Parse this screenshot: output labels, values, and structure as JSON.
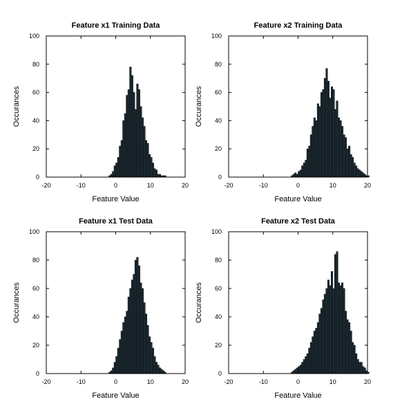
{
  "chart_data": [
    {
      "type": "bar",
      "title": "Feature x1 Training Data",
      "xlabel": "Feature Value",
      "ylabel": "Occurances",
      "xlim": [
        -20,
        20
      ],
      "ylim": [
        0,
        100
      ],
      "xticks": [
        "-20",
        "-10",
        "0",
        "10",
        "20"
      ],
      "yticks": [
        "0",
        "20",
        "40",
        "60",
        "80",
        "100"
      ],
      "x": [
        -2.0,
        -1.5,
        -1.0,
        -0.5,
        0.0,
        0.5,
        1.0,
        1.5,
        2.0,
        2.5,
        3.0,
        3.5,
        4.0,
        4.5,
        5.0,
        5.5,
        6.0,
        6.5,
        7.0,
        7.5,
        8.0,
        8.5,
        9.0,
        9.5,
        10.0,
        10.5,
        11.0,
        11.5,
        12.0,
        12.5,
        13.0,
        13.5,
        14.0
      ],
      "values": [
        1,
        2,
        4,
        8,
        10,
        14,
        22,
        26,
        40,
        45,
        58,
        62,
        78,
        72,
        60,
        48,
        66,
        62,
        50,
        42,
        36,
        26,
        24,
        16,
        14,
        10,
        6,
        5,
        2,
        2,
        1,
        1,
        1
      ]
    },
    {
      "type": "bar",
      "title": "Feature x2 Training Data",
      "xlabel": "Feature Value",
      "ylabel": "Occurances",
      "xlim": [
        -20,
        20
      ],
      "ylim": [
        0,
        100
      ],
      "xticks": [
        "-20",
        "-10",
        "0",
        "10",
        "20"
      ],
      "yticks": [
        "0",
        "20",
        "40",
        "60",
        "80",
        "100"
      ],
      "x": [
        -2.0,
        -1.5,
        -1.0,
        -0.5,
        0.0,
        0.5,
        1.0,
        1.5,
        2.0,
        2.5,
        3.0,
        3.5,
        4.0,
        4.5,
        5.0,
        5.5,
        6.0,
        6.5,
        7.0,
        7.5,
        8.0,
        8.5,
        9.0,
        9.5,
        10.0,
        10.5,
        11.0,
        11.5,
        12.0,
        12.5,
        13.0,
        13.5,
        14.0,
        14.5,
        15.0,
        15.5,
        16.0,
        16.5,
        17.0,
        17.5,
        18.0,
        18.5,
        19.0,
        19.5,
        20.0
      ],
      "values": [
        1,
        2,
        3,
        2,
        4,
        5,
        8,
        10,
        12,
        20,
        22,
        30,
        36,
        42,
        40,
        52,
        50,
        60,
        62,
        70,
        77,
        68,
        56,
        64,
        62,
        48,
        54,
        42,
        40,
        36,
        30,
        28,
        20,
        22,
        16,
        14,
        10,
        8,
        6,
        5,
        4,
        3,
        2,
        1,
        1
      ]
    },
    {
      "type": "bar",
      "title": "Feature x1 Test Data",
      "xlabel": "Feature Value",
      "ylabel": "Occurances",
      "xlim": [
        -20,
        20
      ],
      "ylim": [
        0,
        100
      ],
      "xticks": [
        "-20",
        "-10",
        "0",
        "10",
        "20"
      ],
      "yticks": [
        "0",
        "20",
        "40",
        "60",
        "80",
        "100"
      ],
      "x": [
        -2.0,
        -1.5,
        -1.0,
        -0.5,
        0.0,
        0.5,
        1.0,
        1.5,
        2.0,
        2.5,
        3.0,
        3.5,
        4.0,
        4.5,
        5.0,
        5.5,
        6.0,
        6.5,
        7.0,
        7.5,
        8.0,
        8.5,
        9.0,
        9.5,
        10.0,
        10.5,
        11.0,
        11.5,
        12.0,
        12.5,
        13.0,
        13.5,
        14.0
      ],
      "values": [
        1,
        2,
        4,
        8,
        12,
        18,
        24,
        30,
        36,
        40,
        44,
        54,
        60,
        66,
        70,
        80,
        82,
        76,
        64,
        60,
        50,
        42,
        34,
        26,
        22,
        18,
        12,
        8,
        6,
        4,
        3,
        2,
        1
      ]
    },
    {
      "type": "bar",
      "title": "Feature x2 Test Data",
      "xlabel": "Feature Value",
      "ylabel": "Occurances",
      "xlim": [
        -20,
        20
      ],
      "ylim": [
        0,
        100
      ],
      "xticks": [
        "-20",
        "-10",
        "0",
        "10",
        "20"
      ],
      "yticks": [
        "0",
        "20",
        "40",
        "60",
        "80",
        "100"
      ],
      "x": [
        -2.0,
        -1.5,
        -1.0,
        -0.5,
        0.0,
        0.5,
        1.0,
        1.5,
        2.0,
        2.5,
        3.0,
        3.5,
        4.0,
        4.5,
        5.0,
        5.5,
        6.0,
        6.5,
        7.0,
        7.5,
        8.0,
        8.5,
        9.0,
        9.5,
        10.0,
        10.5,
        11.0,
        11.5,
        12.0,
        12.5,
        13.0,
        13.5,
        14.0,
        14.5,
        15.0,
        15.5,
        16.0,
        16.5,
        17.0,
        17.5,
        18.0,
        18.5,
        19.0,
        19.5,
        20.0
      ],
      "values": [
        1,
        2,
        3,
        4,
        5,
        6,
        8,
        10,
        12,
        14,
        18,
        22,
        26,
        30,
        32,
        36,
        42,
        46,
        52,
        56,
        60,
        66,
        62,
        72,
        60,
        84,
        86,
        64,
        62,
        64,
        60,
        44,
        38,
        36,
        30,
        22,
        20,
        14,
        10,
        8,
        8,
        5,
        4,
        2,
        1
      ]
    }
  ]
}
